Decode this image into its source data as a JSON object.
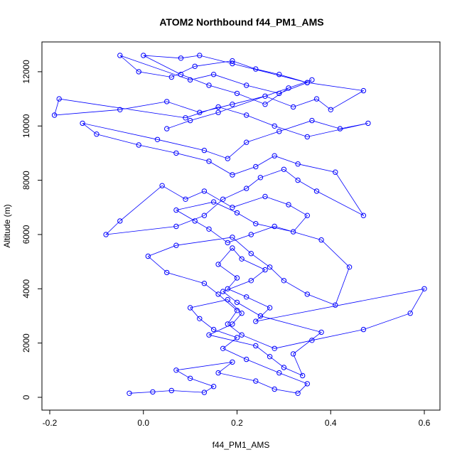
{
  "chart_data": {
    "type": "scatter",
    "title": "ATOM2 Northbound f44_PM1_AMS",
    "xlabel": "f44_PM1_AMS",
    "ylabel": "Altitude (m)",
    "xlim": [
      -0.2,
      0.6
    ],
    "ylim": [
      0,
      12600
    ],
    "xticks": [
      -0.2,
      0.0,
      0.2,
      0.4,
      0.6
    ],
    "xtick_labels": [
      "-0.2",
      "0.0",
      "0.2",
      "0.4",
      "0.6"
    ],
    "yticks": [
      0,
      2000,
      4000,
      6000,
      8000,
      10000,
      12000
    ],
    "ytick_labels": [
      "0",
      "2000",
      "4000",
      "6000",
      "8000",
      "10000",
      "12000"
    ],
    "series_color": "#0000ff",
    "marker": "open-circle",
    "connected": true,
    "grid": false,
    "series": [
      {
        "x": [
          -0.03,
          0.02,
          0.06,
          0.13,
          0.15,
          0.1,
          0.07,
          0.19,
          0.16,
          0.24,
          0.28,
          0.33,
          0.35,
          0.29,
          0.22,
          0.17,
          0.2,
          0.15,
          0.12,
          0.1,
          0.18,
          0.21,
          0.19,
          0.14,
          0.24,
          0.27,
          0.3,
          0.34,
          0.32,
          0.38,
          0.25,
          0.2,
          0.17,
          0.23,
          0.26,
          0.21,
          0.19,
          0.16,
          0.2,
          0.18,
          0.22,
          0.27,
          0.24,
          0.6,
          0.57,
          0.47,
          0.36,
          0.28,
          0.21,
          0.18,
          0.2,
          0.16,
          0.13,
          0.05,
          0.01,
          0.07,
          0.19,
          0.23,
          0.27,
          0.3,
          0.35,
          0.41,
          0.44,
          0.38,
          0.28,
          0.23,
          0.18,
          0.14,
          0.11,
          0.07,
          0.15,
          0.2,
          0.24,
          0.32,
          0.35,
          0.31,
          0.26,
          0.19,
          0.13,
          0.09,
          0.04,
          -0.05,
          -0.08,
          0.07,
          0.13,
          0.17,
          0.22,
          0.25,
          0.3,
          0.33,
          0.37,
          0.47,
          0.41,
          0.33,
          0.28,
          0.24,
          0.19,
          0.14,
          0.07,
          -0.01,
          -0.1,
          -0.13,
          0.03,
          0.13,
          0.18,
          0.22,
          0.29,
          0.36,
          0.42,
          0.48,
          0.35,
          0.28,
          0.22,
          0.16,
          0.09,
          -0.18,
          -0.19,
          -0.05,
          0.05,
          0.12,
          0.19,
          0.26,
          0.32,
          0.37,
          0.4,
          0.47,
          0.35,
          0.29,
          0.22,
          0.15,
          0.1,
          -0.05,
          -0.01,
          0.06,
          0.11,
          0.19,
          0.24,
          0.29,
          0.35,
          0.19,
          0.12,
          0.08,
          0.0,
          0.08,
          0.14,
          0.2,
          0.26,
          0.31,
          0.36,
          0.16,
          0.1,
          0.05
        ],
        "y": [
          150,
          200,
          250,
          180,
          400,
          700,
          1000,
          1300,
          900,
          600,
          300,
          150,
          500,
          900,
          1400,
          1800,
          2200,
          2500,
          2900,
          3300,
          3600,
          3100,
          2700,
          2300,
          1900,
          1500,
          1100,
          800,
          1600,
          2400,
          3000,
          3500,
          3900,
          4300,
          4700,
          5100,
          5500,
          4900,
          4400,
          4000,
          3700,
          3300,
          2800,
          4000,
          3100,
          2500,
          2100,
          1800,
          2300,
          2700,
          3200,
          3800,
          4200,
          4600,
          5200,
          5600,
          5900,
          5300,
          4800,
          4300,
          3800,
          3400,
          4800,
          5800,
          6300,
          6000,
          5700,
          6200,
          6500,
          6900,
          7200,
          6800,
          6400,
          6100,
          6700,
          7100,
          7400,
          7000,
          7600,
          7300,
          7800,
          6500,
          6000,
          6300,
          6700,
          7300,
          7700,
          8100,
          8400,
          8000,
          7600,
          6700,
          8300,
          8600,
          8900,
          8500,
          8200,
          8700,
          9000,
          9300,
          9700,
          10100,
          9500,
          9100,
          8800,
          9400,
          9800,
          10200,
          9900,
          10100,
          9600,
          10000,
          10400,
          10700,
          10300,
          11000,
          10400,
          10600,
          10900,
          10500,
          10800,
          11100,
          10700,
          11000,
          10600,
          11300,
          11600,
          11200,
          11500,
          11900,
          11700,
          12600,
          12000,
          11800,
          12200,
          12400,
          12100,
          11900,
          11600,
          12300,
          12600,
          12500,
          12600,
          11900,
          11500,
          11200,
          10800,
          11400,
          11700,
          10500,
          10200,
          9900
        ]
      }
    ]
  }
}
